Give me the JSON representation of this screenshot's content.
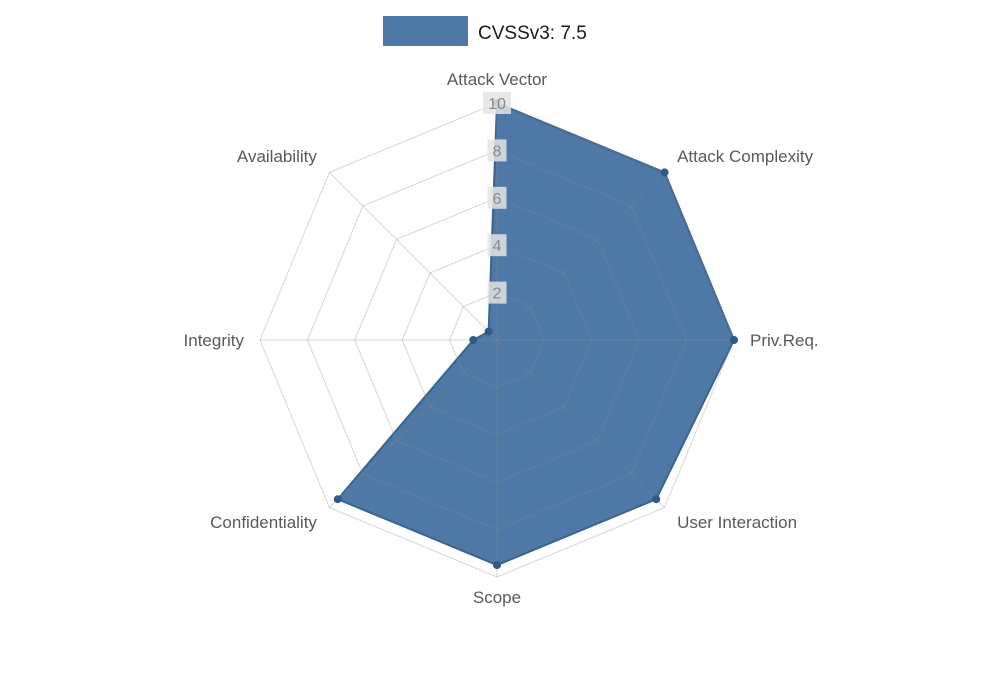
{
  "legend": {
    "label": "CVSSv3: 7.5"
  },
  "chart_data": {
    "type": "radar",
    "title": "",
    "categories": [
      "Attack Vector",
      "Attack Complexity",
      "Priv.Req.",
      "User Interaction",
      "Scope",
      "Confidentiality",
      "Integrity",
      "Availability"
    ],
    "series": [
      {
        "name": "CVSSv3: 7.5",
        "values": [
          10,
          10,
          10,
          9.5,
          9.5,
          9.5,
          1,
          0.5
        ]
      }
    ],
    "ticks": [
      2,
      4,
      6,
      8,
      10
    ],
    "axis_range": [
      0,
      10
    ],
    "start_axis": "top",
    "direction": "clockwise",
    "grid": true,
    "legend_position": "top-center",
    "colors": {
      "series_fill": "#3f6d9e",
      "series_fill_opacity": 0.92,
      "series_line": "#38648f",
      "series_marker": "#2f5a84",
      "grid_line": "#8c8c8c",
      "axis_label": "#595959",
      "tick_text": "#8a8a8a",
      "tick_bg": "#e4e4e4",
      "legend_text": "#1a1a1a"
    }
  }
}
